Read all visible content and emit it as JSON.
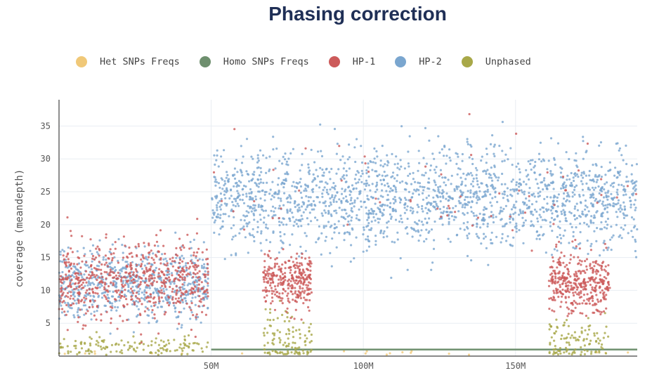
{
  "chart_data": {
    "type": "scatter",
    "title": "Phasing correction",
    "ylabel": "coverage (meandepth)",
    "xlabel": "",
    "xlim": [
      0,
      190000000
    ],
    "ylim": [
      0,
      39
    ],
    "x_ticks": [
      {
        "value": 50000000,
        "label": "50M"
      },
      {
        "value": 100000000,
        "label": "100M"
      },
      {
        "value": 150000000,
        "label": "150M"
      }
    ],
    "y_ticks": [
      {
        "value": 5,
        "label": "5"
      },
      {
        "value": 10,
        "label": "10"
      },
      {
        "value": 15,
        "label": "15"
      },
      {
        "value": 20,
        "label": "20"
      },
      {
        "value": 25,
        "label": "25"
      },
      {
        "value": 30,
        "label": "30"
      },
      {
        "value": 35,
        "label": "35"
      }
    ],
    "grid": true,
    "legend_position": "top",
    "series": [
      {
        "name": "Het SNPs Freqs",
        "color": "#f0c878",
        "segments": [
          {
            "x": [
              0,
              190000000
            ],
            "y_mean": 0.4,
            "y_sd": 0.2,
            "count": 20
          }
        ]
      },
      {
        "name": "Homo SNPs Freqs",
        "color": "#6e8f6e",
        "line": {
          "x": [
            50000000,
            190000000
          ],
          "y": 1.0
        }
      },
      {
        "name": "HP-1",
        "color": "#cc5a5a",
        "segments": [
          {
            "x": [
              0,
              49000000
            ],
            "y_mean": 11.5,
            "y_sd": 2.8,
            "count": 650
          },
          {
            "x": [
              67000000,
              83000000
            ],
            "y_mean": 11.3,
            "y_sd": 2.0,
            "count": 300
          },
          {
            "x": [
              161000000,
              181000000
            ],
            "y_mean": 11.0,
            "y_sd": 2.2,
            "count": 380
          },
          {
            "x": [
              50000000,
              190000000
            ],
            "y_mean": 24,
            "y_sd": 4.5,
            "count": 60
          }
        ]
      },
      {
        "name": "HP-2",
        "color": "#7aa6cf",
        "segments": [
          {
            "x": [
              0,
              49000000
            ],
            "y_mean": 11.0,
            "y_sd": 2.6,
            "count": 650
          },
          {
            "x": [
              50000000,
              190000000
            ],
            "y_mean": 24,
            "y_sd": 3.7,
            "count": 1900
          }
        ]
      },
      {
        "name": "Unphased",
        "color": "#a8a848",
        "segments": [
          {
            "x": [
              0,
              49000000
            ],
            "y_mean": 1.5,
            "y_sd": 0.8,
            "count": 140
          },
          {
            "x": [
              67000000,
              83000000
            ],
            "y_mean": 2.5,
            "y_sd": 2.5,
            "count": 110
          },
          {
            "x": [
              161000000,
              181000000
            ],
            "y_mean": 2.0,
            "y_sd": 1.8,
            "count": 110
          }
        ]
      }
    ]
  }
}
